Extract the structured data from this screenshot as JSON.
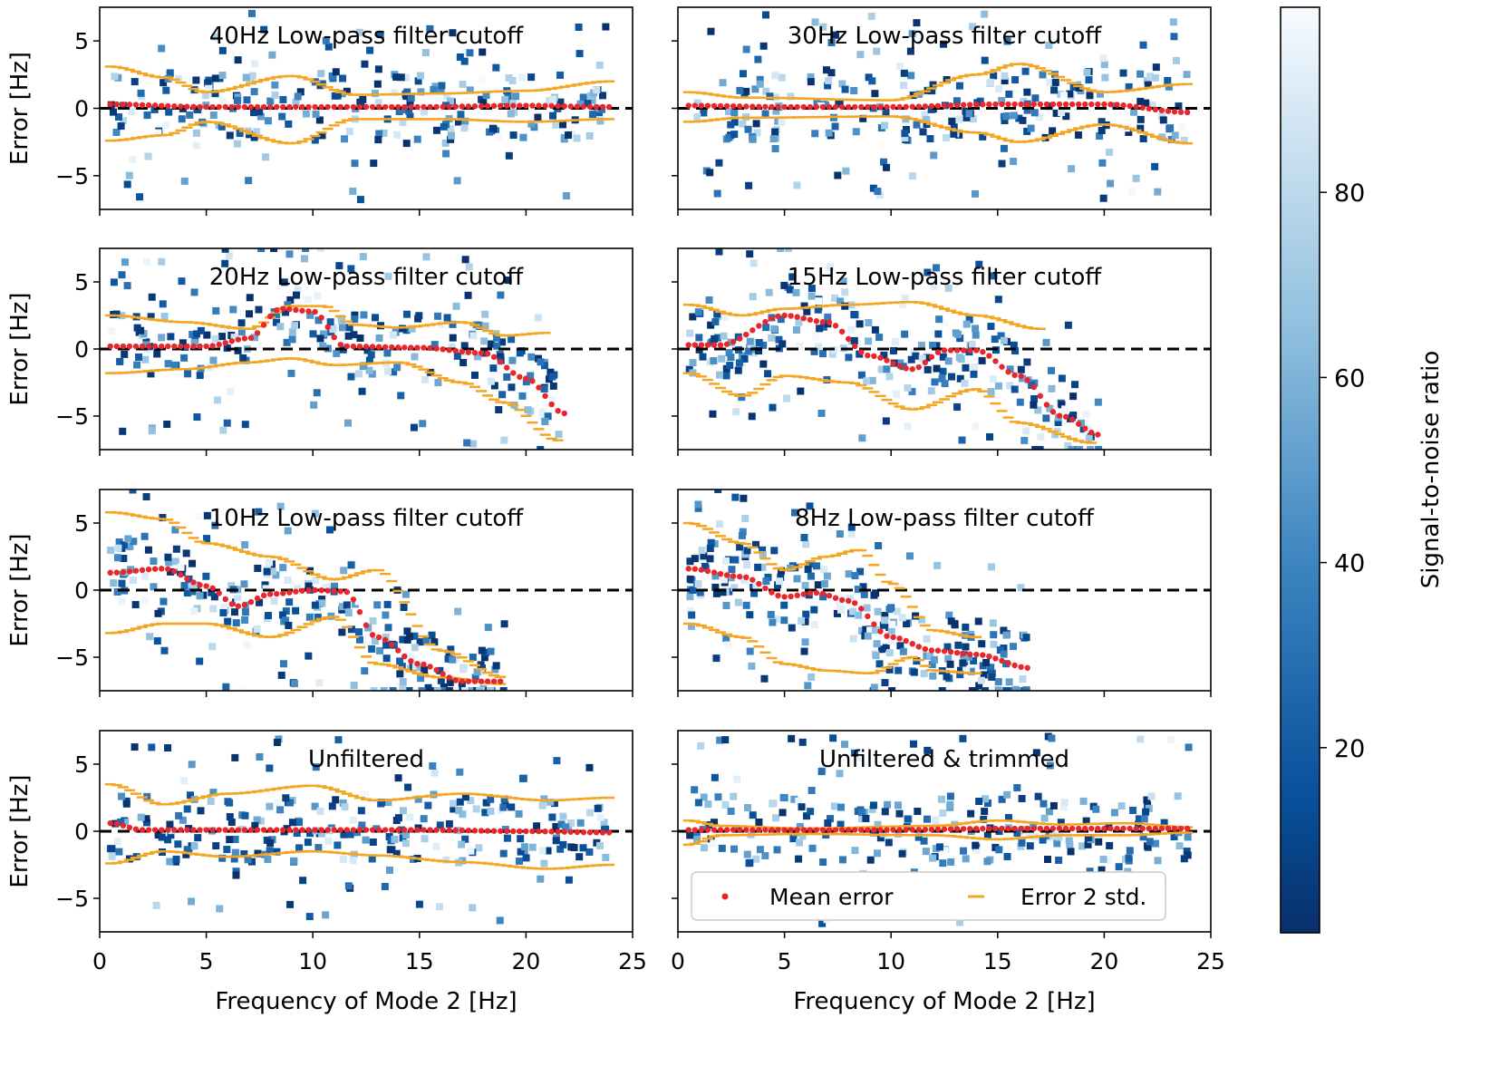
{
  "figure": {
    "xlabel": "Frequency of Mode 2 [Hz]",
    "ylabel": "Error [Hz]",
    "colorbar": {
      "label": "Signal-to-noise ratio",
      "ticks": [
        20,
        40,
        60,
        80
      ],
      "range": [
        0,
        100
      ],
      "colormap_low": "#08306b",
      "colormap_mid": "#4a90c8",
      "colormap_high": "#f7fbff"
    },
    "legend": {
      "mean_label": "Mean error",
      "std_label": "Error 2 std.",
      "mean_color": "#e8262b",
      "std_color": "#f4a623",
      "placement": "lower-center of bottom-right panel"
    }
  },
  "chart_data": [
    {
      "type": "scatter",
      "title": "40Hz Low-pass filter cutoff",
      "xlim": [
        0,
        25
      ],
      "ylim": [
        -7.5,
        7.5
      ],
      "xticks": [
        0,
        5,
        10,
        15,
        20,
        25
      ],
      "yticks": [
        -5,
        0,
        5
      ],
      "mean": {
        "x": [
          0.5,
          5,
          10,
          15,
          20,
          24
        ],
        "y": [
          0.3,
          0.1,
          0.1,
          0.1,
          0.2,
          0.1
        ]
      },
      "std_upper": {
        "x": [
          0.5,
          3,
          5,
          9,
          12,
          16,
          20,
          24
        ],
        "y": [
          3.1,
          2.3,
          1.2,
          2.4,
          1.0,
          1.1,
          1.3,
          2.0
        ]
      },
      "std_lower": {
        "x": [
          0.5,
          3,
          5,
          9,
          12,
          16,
          20,
          24
        ],
        "y": [
          -2.4,
          -2.0,
          -1.0,
          -2.6,
          -0.8,
          -0.8,
          -1.0,
          -0.8
        ]
      }
    },
    {
      "type": "scatter",
      "title": "30Hz Low-pass filter cutoff",
      "xlim": [
        0,
        25
      ],
      "ylim": [
        -7.5,
        7.5
      ],
      "xticks": [
        0,
        5,
        10,
        15,
        20,
        25
      ],
      "yticks": [
        -5,
        0,
        5
      ],
      "mean": {
        "x": [
          0.5,
          5,
          10,
          15,
          20,
          24
        ],
        "y": [
          0.2,
          0.1,
          0.1,
          0.3,
          0.3,
          -0.3
        ]
      },
      "std_upper": {
        "x": [
          0.5,
          3,
          10,
          14,
          16,
          20,
          24
        ],
        "y": [
          1.2,
          0.8,
          0.6,
          2.5,
          3.3,
          1.2,
          1.8
        ]
      },
      "std_lower": {
        "x": [
          0.5,
          3,
          10,
          14,
          16,
          20,
          24
        ],
        "y": [
          -1.0,
          -0.7,
          -0.6,
          -1.8,
          -2.5,
          -1.2,
          -2.6
        ]
      }
    },
    {
      "type": "scatter",
      "title": "20Hz Low-pass filter cutoff",
      "xlim": [
        0,
        25
      ],
      "ylim": [
        -7.5,
        7.5
      ],
      "xticks": [
        0,
        5,
        10,
        15,
        20,
        25
      ],
      "yticks": [
        -5,
        0,
        5
      ],
      "mean": {
        "x": [
          0.5,
          5,
          7,
          8.5,
          10,
          11.5,
          15,
          18,
          20,
          21.8
        ],
        "y": [
          0.2,
          0.2,
          0.8,
          3.0,
          2.8,
          0.2,
          0.1,
          -0.3,
          -2.2,
          -4.8
        ]
      },
      "std_upper": {
        "x": [
          0.5,
          4,
          7,
          9,
          10.5,
          12,
          14,
          17,
          19,
          21
        ],
        "y": [
          2.5,
          2.0,
          1.5,
          3.2,
          3.2,
          1.8,
          1.6,
          2.0,
          1.0,
          1.2
        ]
      },
      "std_lower": {
        "x": [
          0.5,
          4,
          7,
          9,
          11,
          14,
          17,
          19,
          21.5
        ],
        "y": [
          -1.8,
          -1.5,
          -1.0,
          -0.7,
          -1.2,
          -1.0,
          -2.5,
          -4.0,
          -6.8
        ]
      }
    },
    {
      "type": "scatter",
      "title": "15Hz Low-pass filter cutoff",
      "xlim": [
        0,
        25
      ],
      "ylim": [
        -7.5,
        7.5
      ],
      "xticks": [
        0,
        5,
        10,
        15,
        20,
        25
      ],
      "yticks": [
        -5,
        0,
        5
      ],
      "mean": {
        "x": [
          0.5,
          2,
          5,
          7,
          9,
          11,
          12.5,
          14,
          16,
          18,
          19.8
        ],
        "y": [
          0.3,
          0.3,
          2.5,
          2.0,
          -0.5,
          -1.5,
          -0.1,
          -0.1,
          -2.0,
          -5.0,
          -6.4
        ]
      },
      "std_upper": {
        "x": [
          0.5,
          3,
          5,
          8,
          11,
          14,
          17
        ],
        "y": [
          3.3,
          2.5,
          3.0,
          3.3,
          3.5,
          2.5,
          1.5
        ]
      },
      "std_lower": {
        "x": [
          0.5,
          3,
          5,
          8,
          11,
          14,
          16,
          19.5
        ],
        "y": [
          -1.8,
          -3.5,
          -2.0,
          -2.5,
          -4.5,
          -3.0,
          -5.5,
          -7.0
        ]
      }
    },
    {
      "type": "scatter",
      "title": "10Hz Low-pass filter cutoff",
      "xlim": [
        0,
        25
      ],
      "ylim": [
        -7.5,
        7.5
      ],
      "xticks": [
        0,
        5,
        10,
        15,
        20,
        25
      ],
      "yticks": [
        -5,
        0,
        5
      ],
      "mean": {
        "x": [
          0.5,
          3,
          5,
          6.5,
          8,
          10,
          11.5,
          13,
          15,
          17,
          19
        ],
        "y": [
          1.3,
          1.6,
          0.3,
          -1.2,
          -0.3,
          0.0,
          -0.1,
          -3.5,
          -5.5,
          -6.8,
          -6.8
        ]
      },
      "std_upper": {
        "x": [
          0.5,
          3,
          5,
          8,
          11,
          13,
          16,
          19
        ],
        "y": [
          5.8,
          5.3,
          3.5,
          2.5,
          0.8,
          1.5,
          -4.5,
          -6.5
        ]
      },
      "std_lower": {
        "x": [
          0.5,
          3,
          5,
          8,
          11,
          13,
          16,
          19
        ],
        "y": [
          -3.2,
          -2.5,
          -2.5,
          -3.5,
          -2.0,
          -5.5,
          -6.5,
          -7.0
        ]
      }
    },
    {
      "type": "scatter",
      "title": "8Hz Low-pass filter cutoff",
      "xlim": [
        0,
        25
      ],
      "ylim": [
        -7.5,
        7.5
      ],
      "xticks": [
        0,
        5,
        10,
        15,
        20,
        25
      ],
      "yticks": [
        -5,
        0,
        5
      ],
      "mean": {
        "x": [
          0.5,
          3,
          5,
          6.5,
          8,
          10,
          12,
          14,
          16.5
        ],
        "y": [
          1.6,
          1.0,
          -0.5,
          -0.2,
          -0.8,
          -3.5,
          -4.5,
          -4.8,
          -5.8
        ]
      },
      "std_upper": {
        "x": [
          0.5,
          3,
          5,
          7,
          8.5,
          10,
          12,
          14
        ],
        "y": [
          5.0,
          3.5,
          1.5,
          2.5,
          3.0,
          0.5,
          -3.0,
          -3.5
        ]
      },
      "std_lower": {
        "x": [
          0.5,
          3,
          5,
          7,
          9,
          11,
          12,
          14
        ],
        "y": [
          -2.5,
          -3.5,
          -5.5,
          -6.0,
          -6.2,
          -5.0,
          -6.0,
          -6.2
        ]
      }
    },
    {
      "type": "scatter",
      "title": "Unfiltered",
      "xlim": [
        0,
        25
      ],
      "ylim": [
        -7.5,
        7.5
      ],
      "xticks": [
        0,
        5,
        10,
        15,
        20,
        25
      ],
      "yticks": [
        -5,
        0,
        5
      ],
      "mean": {
        "x": [
          0.5,
          2,
          5,
          10,
          15,
          20,
          24
        ],
        "y": [
          0.6,
          0.1,
          0.1,
          0.1,
          0.1,
          0.0,
          -0.1
        ]
      },
      "std_upper": {
        "x": [
          0.5,
          3,
          6,
          10,
          13,
          17,
          21,
          24
        ],
        "y": [
          3.5,
          2.0,
          2.8,
          3.4,
          2.3,
          2.8,
          2.3,
          2.5
        ]
      },
      "std_lower": {
        "x": [
          0.5,
          3,
          6,
          10,
          13,
          17,
          21,
          24
        ],
        "y": [
          -2.4,
          -1.5,
          -1.9,
          -1.5,
          -1.8,
          -2.3,
          -2.8,
          -2.5
        ]
      }
    },
    {
      "type": "scatter",
      "title": "Unfiltered & trimmed",
      "xlim": [
        0,
        25
      ],
      "ylim": [
        -7.5,
        7.5
      ],
      "xticks": [
        0,
        5,
        10,
        15,
        20,
        25
      ],
      "yticks": [
        -5,
        0,
        5
      ],
      "mean": {
        "x": [
          0.5,
          5,
          10,
          15,
          20,
          24
        ],
        "y": [
          0.1,
          0.1,
          0.1,
          0.2,
          0.2,
          0.2
        ]
      },
      "std_upper": {
        "x": [
          0.5,
          2,
          6,
          12,
          15,
          18,
          21,
          24
        ],
        "y": [
          0.8,
          0.4,
          0.2,
          0.4,
          0.8,
          0.5,
          0.6,
          0.3
        ]
      },
      "std_lower": {
        "x": [
          0.5,
          2,
          6,
          12,
          15,
          18,
          21,
          24
        ],
        "y": [
          -1.0,
          -0.3,
          -0.2,
          -0.3,
          -0.6,
          -0.3,
          -0.3,
          -0.1
        ]
      }
    }
  ]
}
